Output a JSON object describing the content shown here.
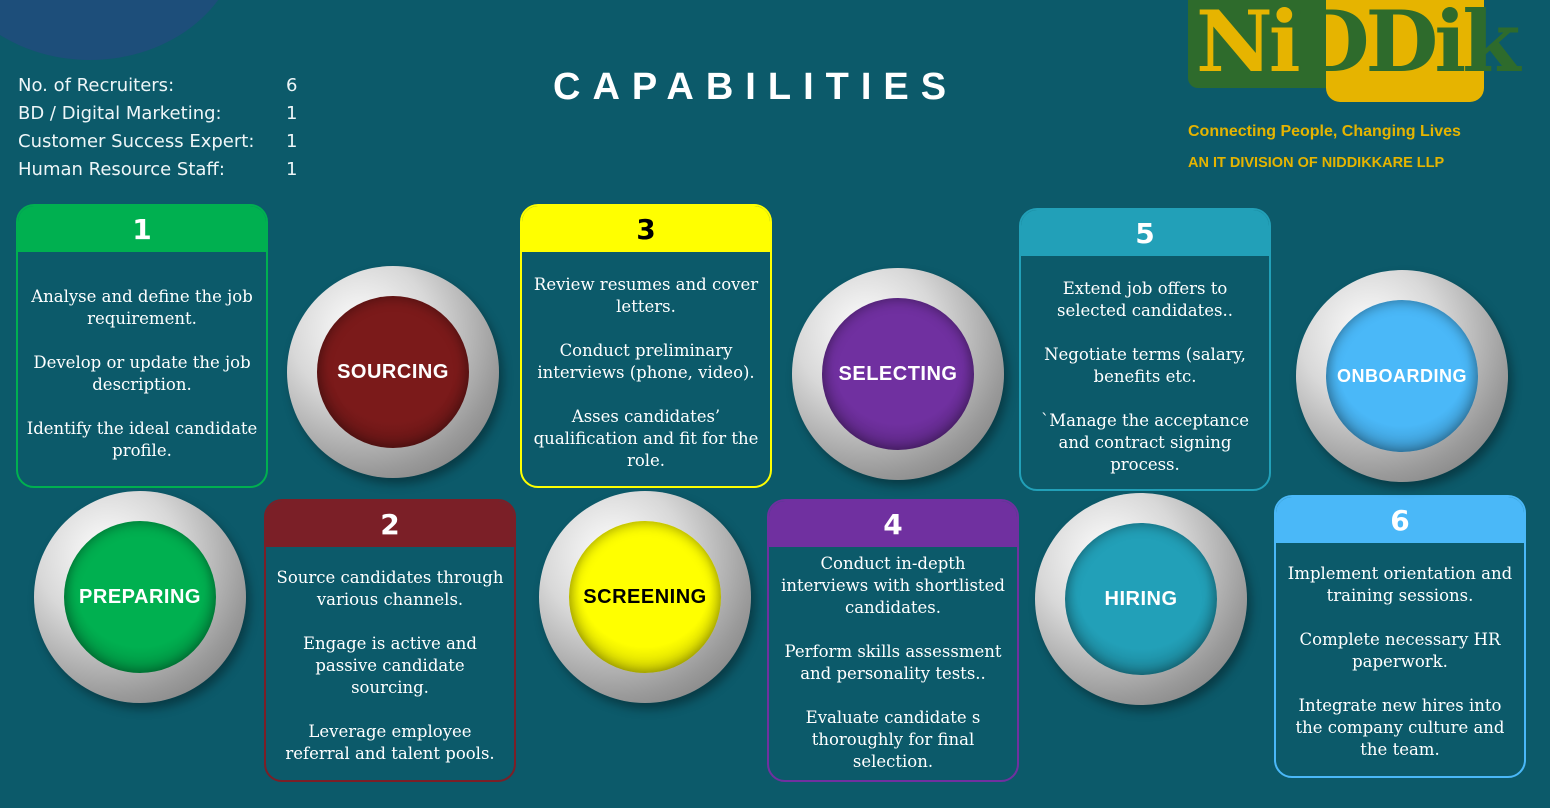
{
  "stats": [
    {
      "label": "No. of Recruiters:",
      "value": "6"
    },
    {
      "label": "BD / Digital Marketing:",
      "value": "1"
    },
    {
      "label": "Customer Success Expert:",
      "value": "1"
    },
    {
      "label": "Human Resource Staff:",
      "value": "1"
    }
  ],
  "title": "CAPABILITIES",
  "logo": {
    "part_a": "Ni",
    "part_b": "Dik",
    "mid": "D"
  },
  "tagline": "Connecting People, Changing Lives",
  "division": "AN IT DIVISION OF NIDDIKKARE LLP",
  "colors": {
    "background": "#0c5a6a",
    "gold": "#e6b400",
    "logo_green": "#2e6b2c"
  },
  "steps": [
    {
      "number": "1",
      "color": "#00b050",
      "number_color": "#ffffff",
      "lines": [
        "Analyse and define the job requirement.",
        "Develop or update the job description.",
        "Identify the ideal candidate profile."
      ]
    },
    {
      "number": "2",
      "color": "#7b1f27",
      "number_color": "#ffffff",
      "lines": [
        "Source candidates through various channels.",
        "Engage is active and passive candidate sourcing.",
        "Leverage employee referral and talent pools."
      ]
    },
    {
      "number": "3",
      "color": "#ffff00",
      "number_color": "#000000",
      "lines": [
        "Review resumes and cover letters.",
        "Conduct preliminary interviews (phone, video).",
        "Asses candidates’ qualification and fit  for the role."
      ]
    },
    {
      "number": "4",
      "color": "#7030a0",
      "number_color": "#ffffff",
      "lines": [
        "Conduct in-depth interviews with shortlisted candidates.",
        "Perform skills assessment and personality tests..",
        "Evaluate candidate s thoroughly for final selection."
      ]
    },
    {
      "number": "5",
      "color": "#22a0b8",
      "number_color": "#ffffff",
      "lines": [
        "Extend job offers to selected candidates..",
        "Negotiate terms (salary, benefits etc.",
        "`Manage the acceptance and contract  signing process."
      ]
    },
    {
      "number": "6",
      "color": "#4ab8f8",
      "number_color": "#ffffff",
      "lines": [
        "Implement orientation and training sessions.",
        "Complete necessary HR paperwork.",
        "Integrate new hires into the company culture and the team."
      ]
    }
  ],
  "stages": [
    {
      "label": "PREPARING",
      "color": "#00b050",
      "text_color": "#ffffff"
    },
    {
      "label": "SOURCING",
      "color": "#7b1a1a",
      "text_color": "#ffffff"
    },
    {
      "label": "SCREENING",
      "color": "#ffff00",
      "text_color": "#000000"
    },
    {
      "label": "SELECTING",
      "color": "#7030a0",
      "text_color": "#ffffff"
    },
    {
      "label": "HIRING",
      "color": "#22a0b8",
      "text_color": "#ffffff"
    },
    {
      "label": "ONBOARDING",
      "color": "#4ab8f8",
      "text_color": "#ffffff"
    }
  ]
}
